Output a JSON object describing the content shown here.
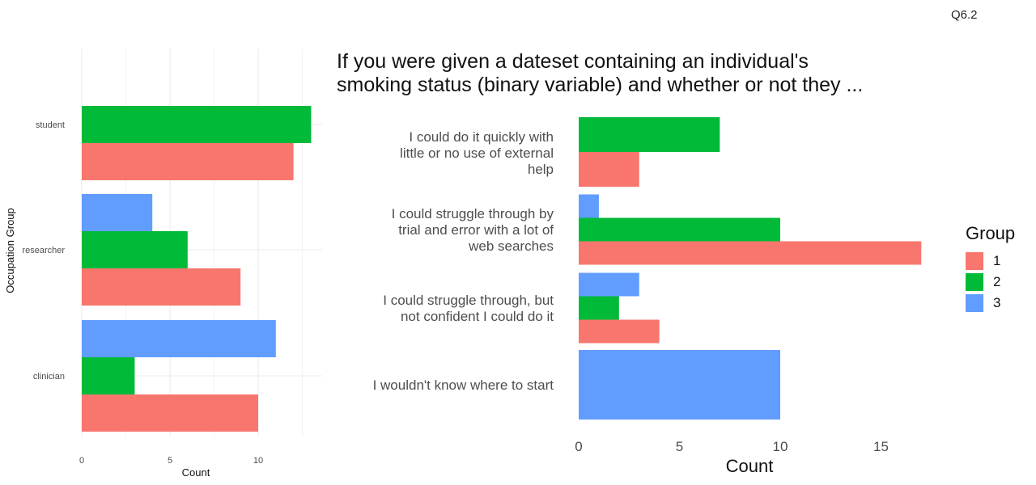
{
  "page_label": "Q6.2",
  "title_lines": [
    "If you were given a dateset containing an individual's",
    "smoking status (binary variable) and whether or not they ..."
  ],
  "colors": {
    "1": "#F8766D",
    "2": "#00BA38",
    "3": "#619CFF",
    "grid": "#EBEBEB"
  },
  "legend": {
    "title": "Group",
    "items": [
      {
        "label": "1",
        "color": "#F8766D"
      },
      {
        "label": "2",
        "color": "#00BA38"
      },
      {
        "label": "3",
        "color": "#619CFF"
      }
    ]
  },
  "chart_data": [
    {
      "type": "bar",
      "orientation": "horizontal",
      "categories": [
        "student",
        "researcher",
        "clinician"
      ],
      "series": [
        {
          "name": "3",
          "values": [
            null,
            4,
            11
          ]
        },
        {
          "name": "2",
          "values": [
            13,
            6,
            3
          ]
        },
        {
          "name": "1",
          "values": [
            12,
            9,
            10
          ]
        }
      ],
      "xlabel": "Count",
      "ylabel": "Occupation Group",
      "xlim": [
        0,
        13.5
      ],
      "xticks": [
        0,
        5,
        10
      ],
      "xtick_labels": [
        "0",
        "5",
        "10"
      ],
      "grid": true
    },
    {
      "type": "bar",
      "orientation": "horizontal",
      "title": "If you were given a dateset containing an individual's smoking status (binary variable) and whether or not they ...",
      "categories": [
        [
          "I could do it quickly with",
          "little or no use of external",
          "help"
        ],
        [
          "I could struggle through by",
          "trial and error with a lot of",
          "web searches"
        ],
        [
          "I could struggle through, but",
          "not confident I could do it"
        ],
        [
          "I wouldn't know where to start"
        ]
      ],
      "series": [
        {
          "name": "3",
          "values": [
            null,
            1,
            3,
            10
          ]
        },
        {
          "name": "2",
          "values": [
            7,
            10,
            2,
            null
          ]
        },
        {
          "name": "1",
          "values": [
            3,
            17,
            4,
            null
          ]
        }
      ],
      "xlabel": "Count",
      "xlim": [
        0,
        17
      ],
      "xticks": [
        0,
        5,
        10,
        15
      ],
      "xtick_labels": [
        "0",
        "5",
        "10",
        "15"
      ],
      "grid": false,
      "legend": "right"
    }
  ]
}
